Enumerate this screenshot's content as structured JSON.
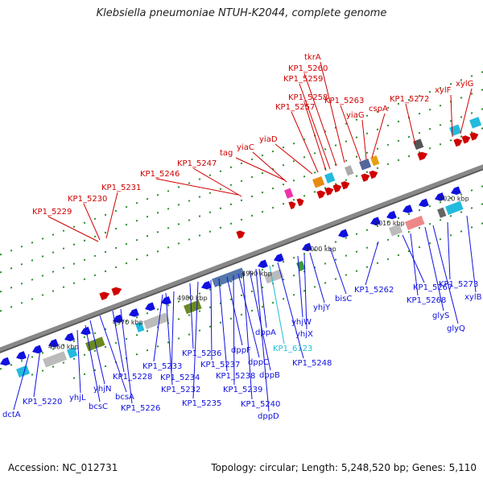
{
  "title": "Klebsiella pneumoniae NTUH-K2044, complete genome",
  "footer": {
    "accession": "Accession: NC_012731",
    "topology": "Topology: circular; Length: 5,248,520 bp; Genes: 5,110"
  },
  "colors": {
    "forward": "#d00000",
    "reverse": "#1010e0",
    "highlight": "#22bbdd",
    "backbone": "#888888",
    "tick": "#2a8a2a"
  },
  "scale_labels": [
    "4960 kbp",
    "4970 kbp",
    "4980 kbp",
    "4990 kbp",
    "5000 kbp",
    "5010 kbp",
    "5020 kbp"
  ],
  "forward_labels": [
    "KP1_5229",
    "KP1_5230",
    "KP1_5231",
    "KP1_5246",
    "KP1_5247",
    "tag",
    "yiaC",
    "yiaD",
    "KP1_5257",
    "KP1_5258",
    "KP1_5259",
    "KP1_5260",
    "tkrA",
    "KP1_5263",
    "yiaG",
    "cspA",
    "KP1_5272",
    "xylF",
    "xylG"
  ],
  "reverse_labels": [
    "dctA",
    "KP1_5220",
    "yhjL",
    "bcsC",
    "yhjN",
    "bcsA",
    "KP1_5228",
    "KP1_5226",
    "KP1_5233",
    "KP1_5232",
    "KP1_5234",
    "KP1_5236",
    "KP1_5235",
    "KP1_5237",
    "KP1_5238",
    "dppF",
    "KP1_5239",
    "dppC",
    "KP1_5240",
    "dppB",
    "dppD",
    "dppA",
    "KP1_6123",
    "KP1_5248",
    "yhjW",
    "yhjX",
    "yhjY",
    "bisC",
    "KP1_5262",
    "KP1_5267",
    "KP1_5268",
    "glyS",
    "glyQ",
    "KP1_5273",
    "xylB"
  ]
}
